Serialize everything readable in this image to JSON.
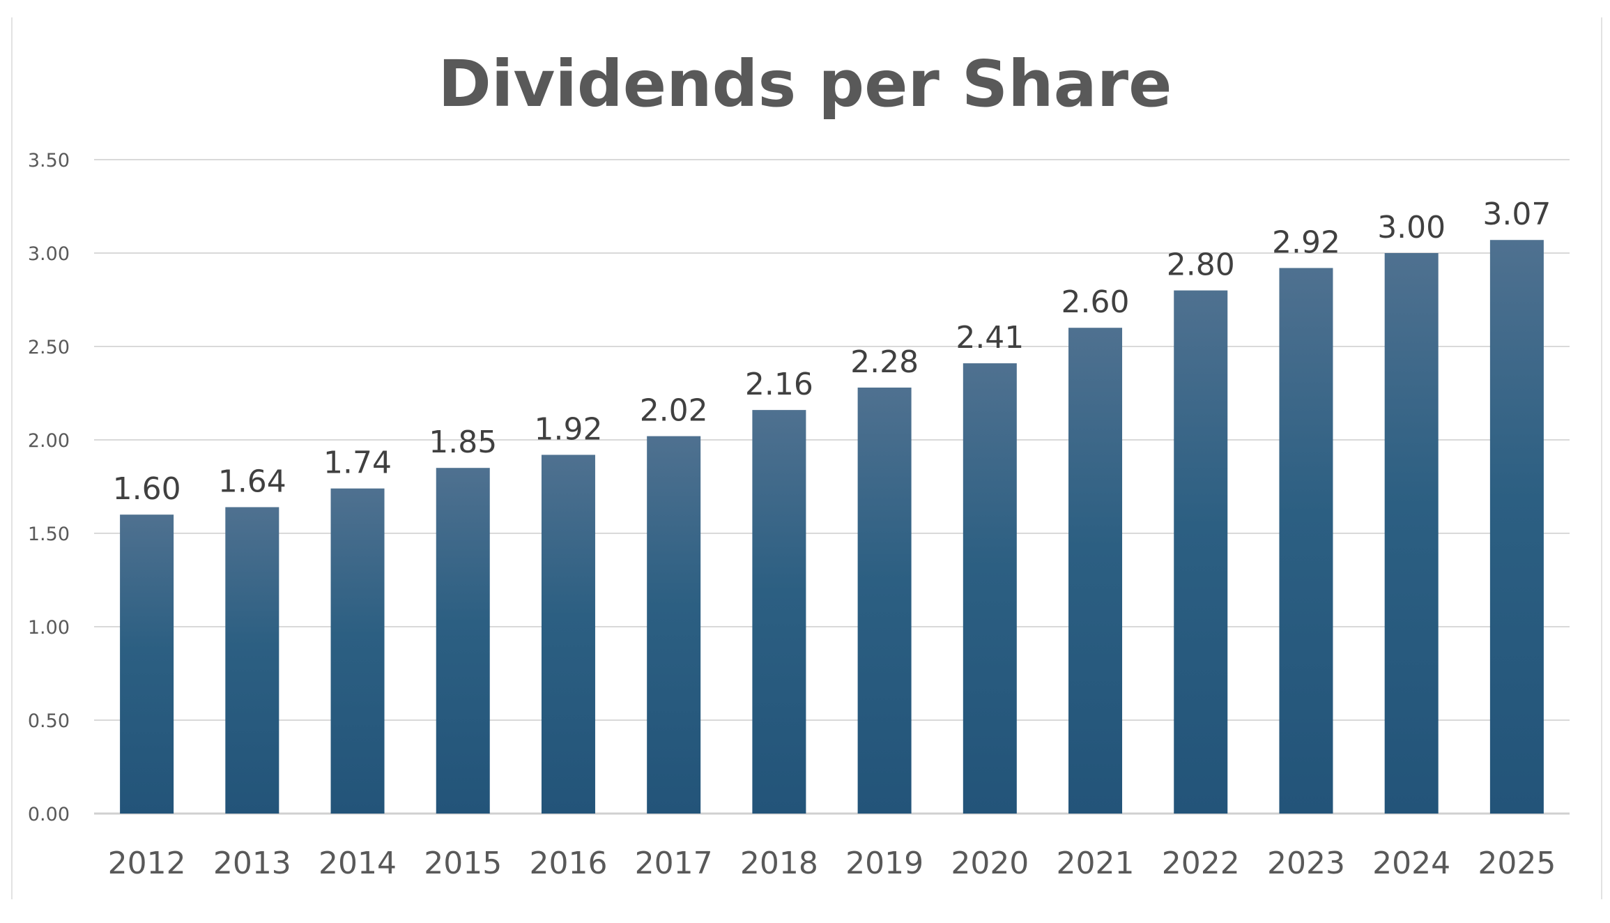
{
  "chart_data": {
    "type": "bar",
    "title": "Dividends per Share",
    "categories": [
      "2012",
      "2013",
      "2014",
      "2015",
      "2016",
      "2017",
      "2018",
      "2019",
      "2020",
      "2021",
      "2022",
      "2023",
      "2024",
      "2025"
    ],
    "values": [
      1.6,
      1.64,
      1.74,
      1.85,
      1.92,
      2.02,
      2.16,
      2.28,
      2.41,
      2.6,
      2.8,
      2.92,
      3.0,
      3.07
    ],
    "data_labels": [
      "1.60",
      "1.64",
      "1.74",
      "1.85",
      "1.92",
      "2.02",
      "2.16",
      "2.28",
      "2.41",
      "2.60",
      "2.80",
      "2.92",
      "3.00",
      "3.07"
    ],
    "y_ticks": [
      0,
      0.5,
      1,
      1.5,
      2,
      2.5,
      3,
      3.5
    ],
    "y_tick_labels": [
      "0.00",
      "0.50",
      "1.00",
      "1.50",
      "2.00",
      "2.50",
      "3.00",
      "3.50"
    ],
    "ylim": [
      0,
      3.5
    ],
    "xlabel": "",
    "ylabel": "",
    "grid": true,
    "legend": "none",
    "colors": {
      "bar_top": "#4f7190",
      "bar_bottom": "#235479",
      "grid": "#d9d9d9",
      "axis": "#d0d0d0",
      "text": "#595959"
    }
  }
}
